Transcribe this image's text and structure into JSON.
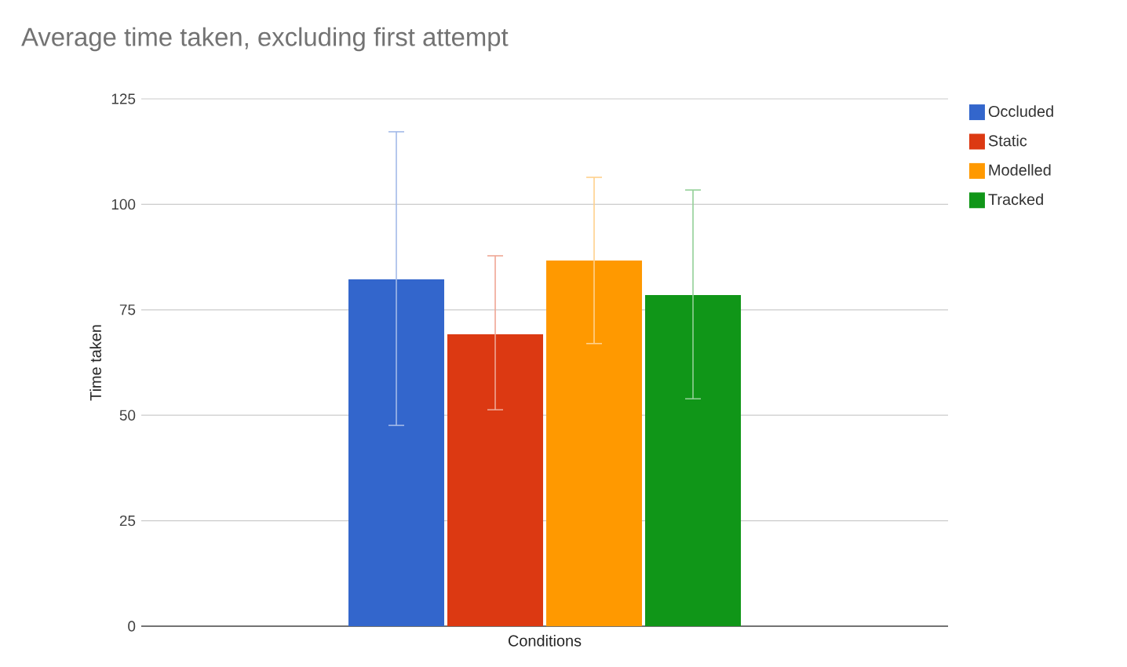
{
  "chart_data": {
    "type": "bar",
    "title": "Average time taken, excluding first attempt",
    "xlabel": "Conditions",
    "ylabel": "Time taken",
    "categories": [
      null
    ],
    "series": [
      {
        "name": "Occluded",
        "color": "#3366cc",
        "values": [
          82.2
        ],
        "errors": [
          [
            47.6,
            117.2
          ]
        ]
      },
      {
        "name": "Static",
        "color": "#dc3912",
        "values": [
          69.2
        ],
        "errors": [
          [
            51.3,
            87.8
          ]
        ]
      },
      {
        "name": "Modelled",
        "color": "#ff9900",
        "values": [
          86.7
        ],
        "errors": [
          [
            67.0,
            106.4
          ]
        ]
      },
      {
        "name": "Tracked",
        "color": "#109618",
        "values": [
          78.5
        ],
        "errors": [
          [
            53.9,
            103.4
          ]
        ]
      }
    ],
    "ylim": [
      0,
      125
    ],
    "yticks": [
      0,
      25,
      50,
      75,
      100,
      125
    ],
    "grid": "y",
    "legend": "right"
  }
}
